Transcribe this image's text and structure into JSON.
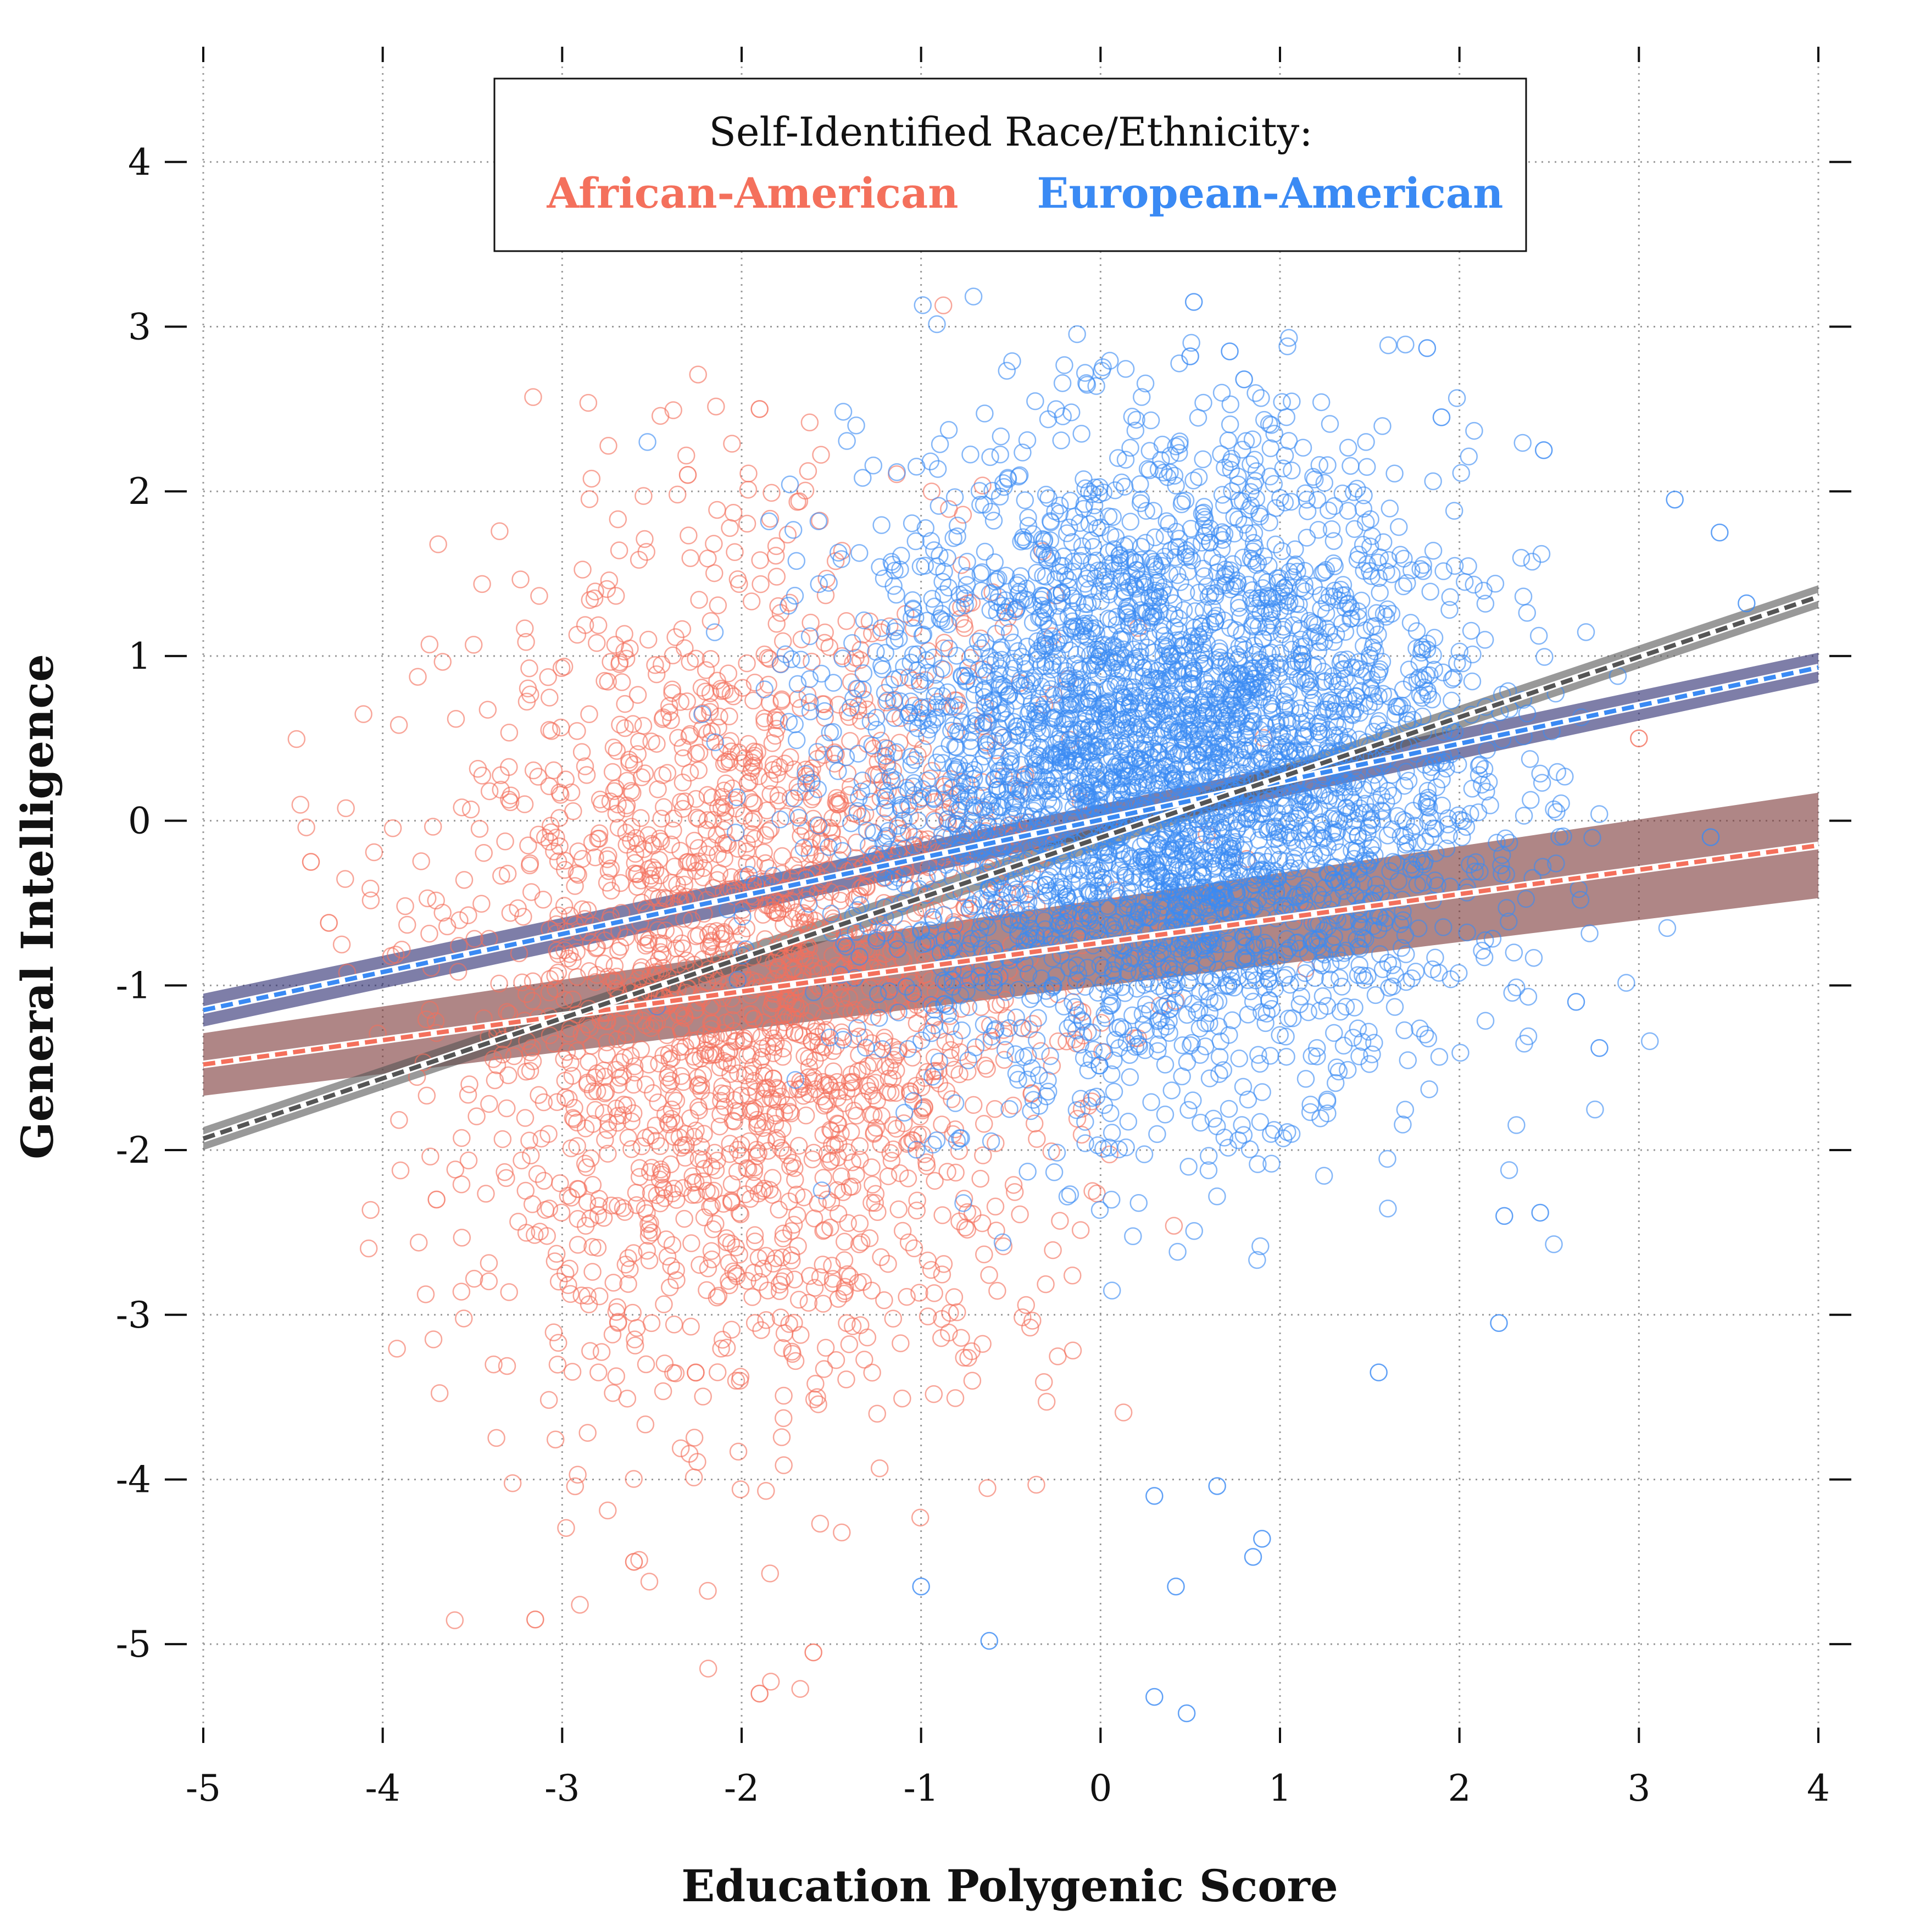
{
  "chart_data": {
    "type": "scatter",
    "title": "",
    "xlabel": "Education Polygenic Score",
    "ylabel": "General Intelligence",
    "xlim": [
      -5,
      4
    ],
    "ylim": [
      -5.6,
      4.7
    ],
    "xticks": [
      "-5",
      "-4",
      "-3",
      "-2",
      "-1",
      "0",
      "1",
      "2",
      "3",
      "4"
    ],
    "yticks": [
      "-5",
      "-4",
      "-3",
      "-2",
      "-1",
      "0",
      "1",
      "2",
      "3",
      "4"
    ],
    "grid": true,
    "legend": {
      "title": "Self-Identified Race/Ethnicity:",
      "placement": "top-center",
      "entries": [
        {
          "name": "African-American",
          "color": "#f4705c"
        },
        {
          "name": "European-American",
          "color": "#3a8af4"
        }
      ]
    },
    "series": [
      {
        "name": "African-American",
        "marker": "open-circle",
        "color": "#f4705c",
        "n_points_approx": 2200,
        "x_mean": -1.9,
        "x_sd": 0.85,
        "y_mean": -1.0,
        "y_sd": 1.25,
        "outliers": [
          {
            "x": -1.9,
            "y": 2.5
          },
          {
            "x": -2.3,
            "y": 2.1
          },
          {
            "x": -4.4,
            "y": -0.25
          },
          {
            "x": -4.3,
            "y": -0.62
          },
          {
            "x": -3.15,
            "y": -4.85
          },
          {
            "x": -1.9,
            "y": -5.3
          },
          {
            "x": -1.6,
            "y": -5.05
          },
          {
            "x": -3.7,
            "y": -2.3
          },
          {
            "x": 3.0,
            "y": 0.5
          },
          {
            "x": -2.6,
            "y": -4.5
          }
        ]
      },
      {
        "name": "European-American",
        "marker": "open-circle",
        "color": "#3a8af4",
        "n_points_approx": 4000,
        "x_mean": 0.35,
        "x_sd": 0.85,
        "y_mean": 0.3,
        "y_sd": 0.95,
        "outliers": [
          {
            "x": 0.52,
            "y": 3.15
          },
          {
            "x": 0.5,
            "y": 2.82
          },
          {
            "x": 0.72,
            "y": 2.85
          },
          {
            "x": 1.82,
            "y": 2.87
          },
          {
            "x": 0.8,
            "y": 2.68
          },
          {
            "x": 1.9,
            "y": 2.45
          },
          {
            "x": 2.47,
            "y": 2.25
          },
          {
            "x": 3.2,
            "y": 1.95
          },
          {
            "x": 3.45,
            "y": 1.75
          },
          {
            "x": 3.6,
            "y": 1.32
          },
          {
            "x": 3.4,
            "y": -0.1
          },
          {
            "x": 2.65,
            "y": -1.1
          },
          {
            "x": 2.78,
            "y": -1.38
          },
          {
            "x": 2.25,
            "y": -2.4
          },
          {
            "x": 2.45,
            "y": -2.38
          },
          {
            "x": 2.22,
            "y": -3.05
          },
          {
            "x": 1.55,
            "y": -3.35
          },
          {
            "x": 0.3,
            "y": -5.32
          },
          {
            "x": 0.48,
            "y": -5.42
          },
          {
            "x": -0.62,
            "y": -4.98
          },
          {
            "x": 0.42,
            "y": -4.65
          },
          {
            "x": -1.0,
            "y": -4.65
          },
          {
            "x": 0.9,
            "y": -4.36
          },
          {
            "x": 0.85,
            "y": -4.47
          },
          {
            "x": 0.65,
            "y": -4.04
          },
          {
            "x": 0.3,
            "y": -4.1
          }
        ]
      }
    ],
    "regression_lines": [
      {
        "group": "African-American",
        "color": "#f4705c",
        "band_color": "#7a3535",
        "band_opacity": 0.6,
        "x": [
          -5,
          4
        ],
        "y": [
          -1.48,
          -0.15
        ],
        "ci_halfwidth": [
          0.19,
          0.32
        ]
      },
      {
        "group": "European-American",
        "color": "#3a8af4",
        "band_color": "#28286e",
        "band_opacity": 0.6,
        "x": [
          -5,
          4
        ],
        "y": [
          -1.15,
          0.93
        ],
        "ci_halfwidth": [
          0.1,
          0.09
        ]
      },
      {
        "group": "Pooled",
        "color": "#555555",
        "band_color": "#555555",
        "band_opacity": 0.6,
        "x": [
          -5,
          4
        ],
        "y": [
          -1.93,
          1.36
        ],
        "ci_halfwidth": [
          0.07,
          0.07
        ]
      }
    ]
  }
}
